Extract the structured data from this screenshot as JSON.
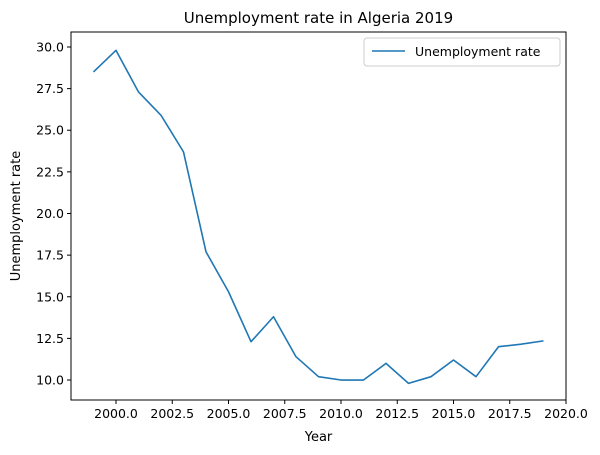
{
  "chart_data": {
    "type": "line",
    "title": "Unemployment rate in Algeria 2019",
    "xlabel": "Year",
    "ylabel": "Unemployment rate",
    "xlim": [
      1998.0,
      2020.0
    ],
    "ylim": [
      8.8,
      30.9
    ],
    "xticks": [
      {
        "value": 2000.0,
        "label": "2000.0"
      },
      {
        "value": 2002.5,
        "label": "2002.5"
      },
      {
        "value": 2005.0,
        "label": "2005.0"
      },
      {
        "value": 2007.5,
        "label": "2007.5"
      },
      {
        "value": 2010.0,
        "label": "2010.0"
      },
      {
        "value": 2012.5,
        "label": "2012.5"
      },
      {
        "value": 2015.0,
        "label": "2015.0"
      },
      {
        "value": 2017.5,
        "label": "2017.5"
      },
      {
        "value": 2020.0,
        "label": "2020.0"
      }
    ],
    "yticks": [
      {
        "value": 10.0,
        "label": "10.0"
      },
      {
        "value": 12.5,
        "label": "12.5"
      },
      {
        "value": 15.0,
        "label": "15.0"
      },
      {
        "value": 17.5,
        "label": "17.5"
      },
      {
        "value": 20.0,
        "label": "20.0"
      },
      {
        "value": 22.5,
        "label": "22.5"
      },
      {
        "value": 25.0,
        "label": "25.0"
      },
      {
        "value": 27.5,
        "label": "27.5"
      },
      {
        "value": 30.0,
        "label": "30.0"
      }
    ],
    "grid": false,
    "legend_position": "top-right",
    "series": [
      {
        "name": "Unemployment rate",
        "color": "#1f77b4",
        "x": [
          1999,
          2000,
          2001,
          2002,
          2003,
          2004,
          2005,
          2006,
          2007,
          2008,
          2009,
          2010,
          2011,
          2012,
          2013,
          2014,
          2015,
          2016,
          2017,
          2018,
          2019
        ],
        "y": [
          28.5,
          29.8,
          27.3,
          25.9,
          23.7,
          17.7,
          15.3,
          12.3,
          13.8,
          11.4,
          10.2,
          10.0,
          10.0,
          11.0,
          9.8,
          10.2,
          11.2,
          10.2,
          12.0,
          12.15,
          12.35
        ]
      }
    ]
  }
}
